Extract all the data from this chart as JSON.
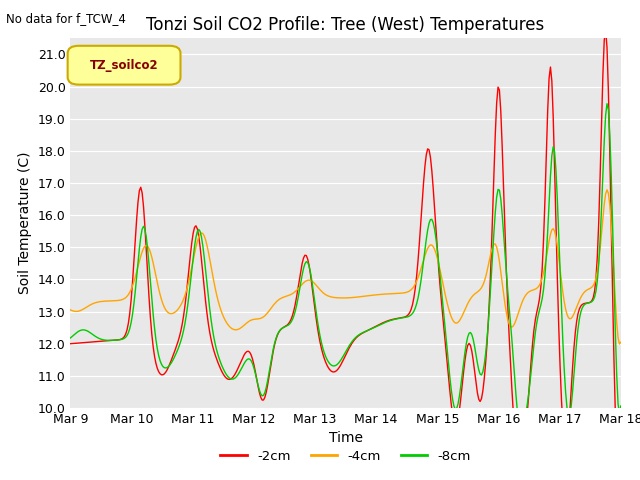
{
  "title": "Tonzi Soil CO2 Profile: Tree (West) Temperatures",
  "note": "No data for f_TCW_4",
  "ylabel": "Soil Temperature (C)",
  "xlabel": "Time",
  "ylim": [
    10.0,
    21.5
  ],
  "yticks": [
    10.0,
    11.0,
    12.0,
    13.0,
    14.0,
    15.0,
    16.0,
    17.0,
    18.0,
    19.0,
    20.0,
    21.0
  ],
  "legend_label": "TZ_soilco2",
  "series_labels": [
    "-2cm",
    "-4cm",
    "-8cm"
  ],
  "series_colors": [
    "#ff0000",
    "#ffa500",
    "#00cc00"
  ],
  "plot_bg_color": "#e8e8e8",
  "n_points": 400,
  "xtick_labels": [
    "Mar 9",
    "Mar 10",
    "Mar 11",
    "Mar 12",
    "Mar 13",
    "Mar 14",
    "Mar 15",
    "Mar 16",
    "Mar 17",
    "Mar 18"
  ],
  "title_fontsize": 12,
  "axis_fontsize": 10,
  "tick_fontsize": 9,
  "figsize": [
    6.4,
    4.8
  ],
  "dpi": 100
}
